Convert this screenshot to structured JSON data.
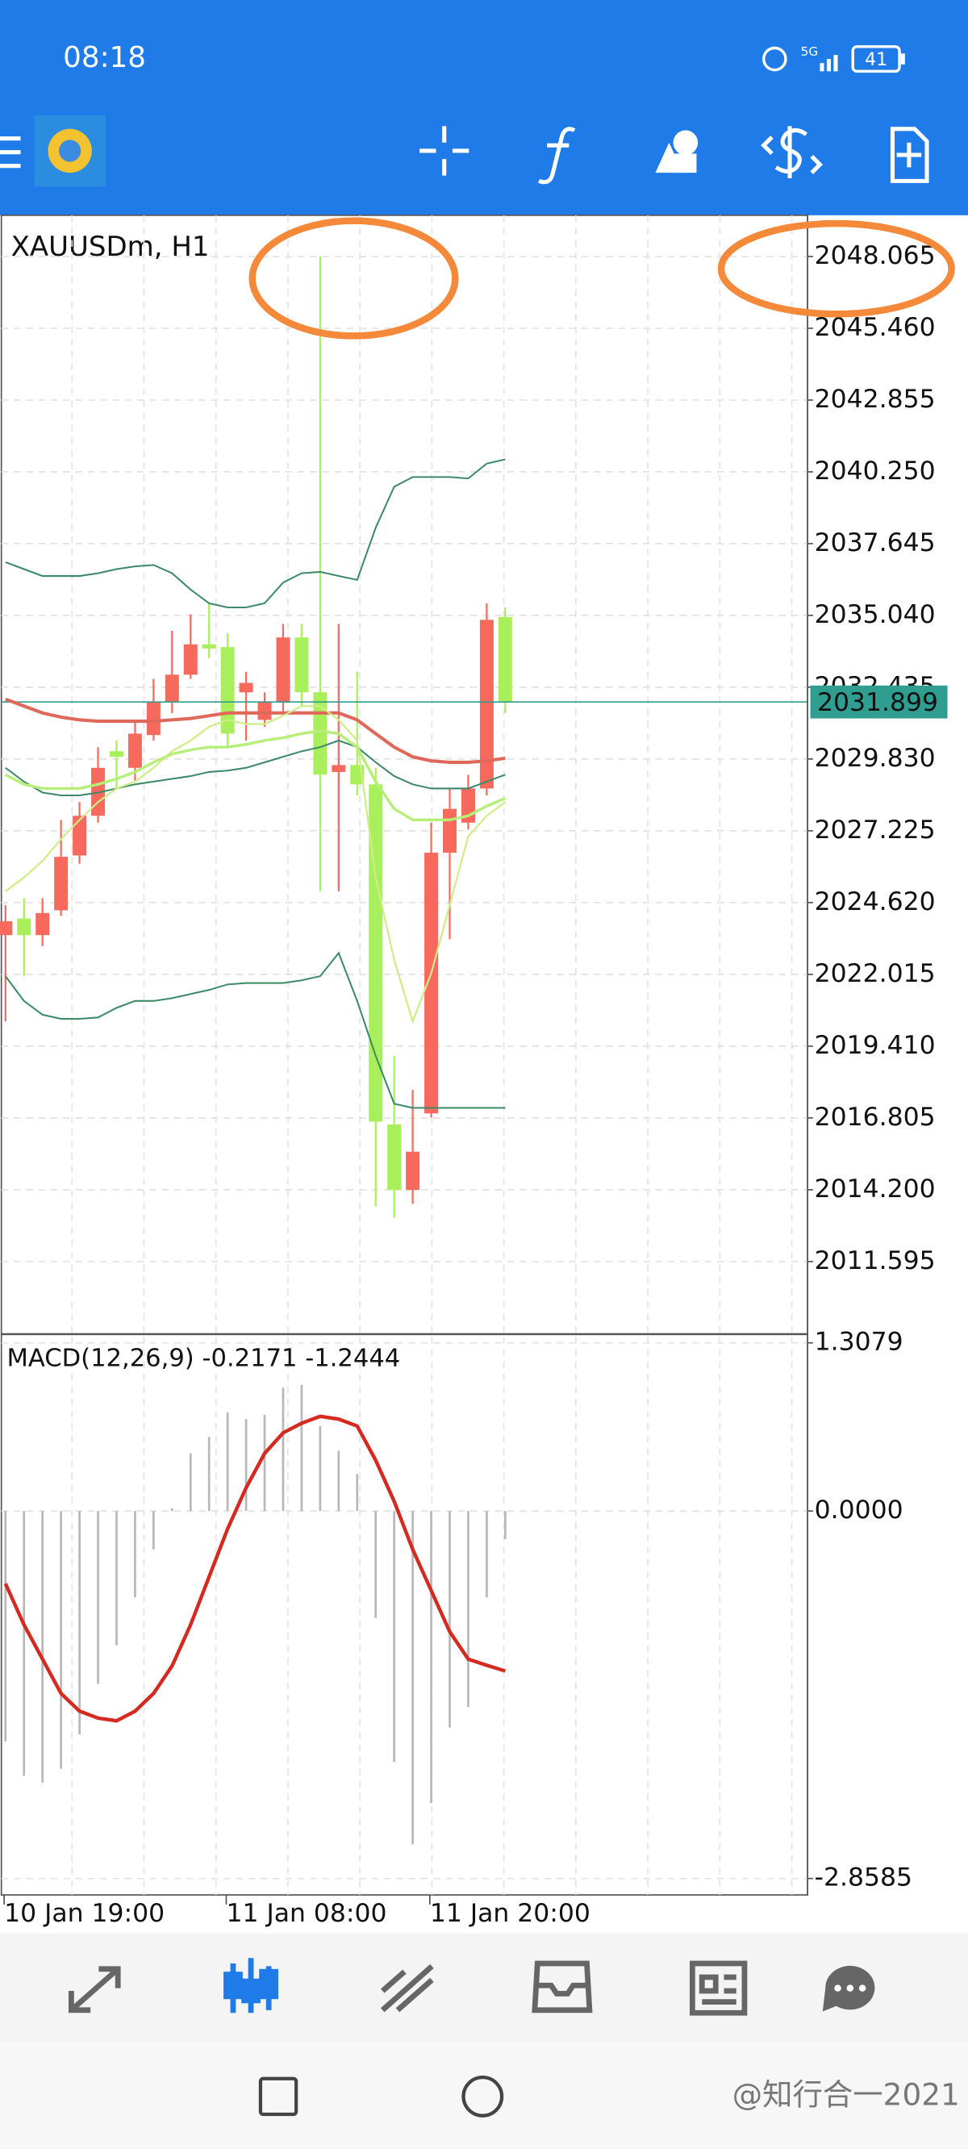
{
  "status_bar": {
    "time": "08:18",
    "network": "5G",
    "battery": "41"
  },
  "chart_data": [
    {
      "type": "candlestick",
      "title": "XAUUSDm, H1",
      "series": [
        {
          "up_color": "#f7695c",
          "down_color": "#a9ef5c",
          "open": [
            2023.44,
            2024.04,
            2023.44,
            2024.34,
            2026.33,
            2027.77,
            2030.11,
            2029.51,
            2030.7,
            2031.9,
            2032.89,
            2033.99,
            2033.89,
            2032.25,
            2031.25,
            2031.9,
            2034.24,
            2032.25,
            2029.36,
            2029.61,
            2028.91,
            2016.57,
            2014.19,
            2016.97,
            2026.43,
            2027.52,
            2028.76,
            2034.98
          ],
          "high": [
            2024.53,
            2024.78,
            2024.78,
            2027.62,
            2028.27,
            2030.26,
            2030.5,
            2031.25,
            2032.74,
            2034.48,
            2035.08,
            2035.48,
            2034.39,
            2032.99,
            2032.25,
            2034.73,
            2034.73,
            2048.07,
            2034.73,
            2032.99,
            2029.51,
            2019.06,
            2017.82,
            2027.52,
            2028.76,
            2029.26,
            2035.48,
            2035.33
          ],
          "low": [
            2020.31,
            2021.95,
            2023.04,
            2024.14,
            2026.03,
            2027.52,
            2028.76,
            2029.01,
            2030.5,
            2031.5,
            2032.74,
            2033.49,
            2030.26,
            2030.5,
            2031.0,
            2031.5,
            2031.75,
            2025.03,
            2025.03,
            2028.51,
            2013.59,
            2013.19,
            2013.69,
            2016.82,
            2023.29,
            2027.27,
            2028.51,
            2031.5
          ],
          "close": [
            2023.94,
            2023.44,
            2024.24,
            2026.28,
            2027.77,
            2029.51,
            2029.91,
            2030.75,
            2031.9,
            2032.89,
            2033.99,
            2033.84,
            2030.75,
            2032.59,
            2031.9,
            2034.24,
            2032.25,
            2029.26,
            2029.61,
            2028.91,
            2016.67,
            2014.19,
            2015.58,
            2026.43,
            2028.02,
            2028.76,
            2034.88,
            2031.899
          ]
        }
      ],
      "overlays": [
        {
          "color": "#3d8a68",
          "values": [
            2036.97,
            2036.72,
            2036.47,
            2036.47,
            2036.47,
            2036.57,
            2036.72,
            2036.82,
            2036.87,
            2036.57,
            2035.98,
            2035.48,
            2035.33,
            2035.33,
            2035.48,
            2036.23,
            2036.57,
            2036.62,
            2036.47,
            2036.33,
            2038.22,
            2039.71,
            2040.06,
            2040.06,
            2040.06,
            2040.01,
            2040.55,
            2040.7
          ]
        },
        {
          "color": "#3d8a68",
          "values": [
            2029.51,
            2029.01,
            2028.61,
            2028.51,
            2028.51,
            2028.61,
            2028.76,
            2028.91,
            2029.01,
            2029.11,
            2029.21,
            2029.36,
            2029.41,
            2029.51,
            2029.71,
            2029.91,
            2030.11,
            2030.26,
            2030.5,
            2030.26,
            2029.71,
            2029.21,
            2028.91,
            2028.76,
            2028.76,
            2028.76,
            2029.01,
            2029.26
          ]
        },
        {
          "color": "#3d8a68",
          "values": [
            2021.95,
            2021.05,
            2020.55,
            2020.4,
            2020.4,
            2020.45,
            2020.8,
            2021.05,
            2021.05,
            2021.15,
            2021.3,
            2021.45,
            2021.65,
            2021.7,
            2021.7,
            2021.7,
            2021.8,
            2021.95,
            2022.79,
            2021.05,
            2019.06,
            2017.32,
            2017.17,
            2017.17,
            2017.17,
            2017.17,
            2017.17,
            2017.17
          ]
        },
        {
          "color": "#e0685a",
          "values": [
            2032.0,
            2031.75,
            2031.5,
            2031.35,
            2031.25,
            2031.2,
            2031.2,
            2031.2,
            2031.2,
            2031.25,
            2031.3,
            2031.4,
            2031.5,
            2031.5,
            2031.5,
            2031.5,
            2031.5,
            2031.5,
            2031.5,
            2031.25,
            2030.75,
            2030.26,
            2029.91,
            2029.76,
            2029.71,
            2029.71,
            2029.76,
            2029.86
          ]
        },
        {
          "color": "#cdee86",
          "values": [
            2025.03,
            2025.53,
            2026.13,
            2026.92,
            2027.62,
            2028.27,
            2028.76,
            2029.01,
            2029.51,
            2030.11,
            2030.5,
            2031.0,
            2031.25,
            2031.1,
            2031.1,
            2031.4,
            2031.75,
            2031.75,
            2031.25,
            2030.5,
            2025.53,
            2022.54,
            2020.31,
            2022.05,
            2024.53,
            2027.02,
            2027.77,
            2028.27
          ]
        },
        {
          "color": "#b5ef78",
          "values": [
            2029.26,
            2028.91,
            2028.76,
            2028.76,
            2028.76,
            2028.91,
            2029.11,
            2029.36,
            2029.71,
            2030.01,
            2030.16,
            2030.26,
            2030.26,
            2030.36,
            2030.5,
            2030.6,
            2030.75,
            2030.85,
            2030.75,
            2030.26,
            2029.01,
            2028.02,
            2027.62,
            2027.62,
            2027.62,
            2027.77,
            2028.12,
            2028.41
          ]
        }
      ],
      "price_line_color": "#2f9d8f",
      "ylim": [
        2009.01,
        2049.56
      ],
      "yticks": [
        2048.065,
        {
          "value": 2045.46,
          "label": "2045.460"
        },
        2042.855,
        {
          "value": 2040.25,
          "label": "2040.250"
        },
        2037.645,
        {
          "value": 2035.04,
          "label": "2035.040"
        },
        2032.435,
        {
          "value": 2029.83,
          "label": "2029.830"
        },
        2027.225,
        {
          "value": 2024.62,
          "label": "2024.620"
        },
        2022.015,
        {
          "value": 2019.41,
          "label": "2019.410"
        },
        2016.805,
        {
          "value": 2014.2,
          "label": "2014.200"
        },
        2011.595
      ],
      "grid": true
    },
    {
      "type": "macd",
      "title": "MACD(12,26,9)",
      "categories": [
        "10 Jan 19:00",
        null,
        null,
        null,
        null,
        null,
        null,
        null,
        null,
        null,
        null,
        null,
        "11 Jan 08:00",
        null,
        null,
        null,
        null,
        null,
        null,
        null,
        null,
        null,
        null,
        "11 Jan 20:00",
        null,
        null,
        null,
        null
      ],
      "series": [
        {
          "color": "#b8b8b8",
          "values": [
            -1.792,
            -2.058,
            -2.112,
            -2.005,
            -1.738,
            -1.344,
            -1.045,
            -0.672,
            -0.299,
            0.021,
            0.448,
            0.576,
            0.768,
            0.715,
            0.747,
            0.96,
            0.981,
            0.661,
            0.469,
            0.288,
            -0.832,
            -1.952,
            -2.592,
            -2.272,
            -1.685,
            -1.525,
            -0.672,
            -0.2171
          ]
        },
        {
          "color": "#d42a1f",
          "values": [
            -0.565,
            -0.885,
            -1.152,
            -1.419,
            -1.557,
            -1.611,
            -1.632,
            -1.557,
            -1.419,
            -1.205,
            -0.885,
            -0.512,
            -0.139,
            0.181,
            0.448,
            0.608,
            0.683,
            0.736,
            0.715,
            0.661,
            0.395,
            0.075,
            -0.299,
            -0.619,
            -0.939,
            -1.152,
            -1.2,
            -1.2444
          ]
        }
      ],
      "ylim": [
        -2.9863,
        1.3545
      ],
      "yticks": [
        1.3079,
        {
          "value": 0,
          "label": "0.0000"
        },
        -2.8585
      ],
      "grid": true
    }
  ],
  "watermark": "@知行合一2021"
}
